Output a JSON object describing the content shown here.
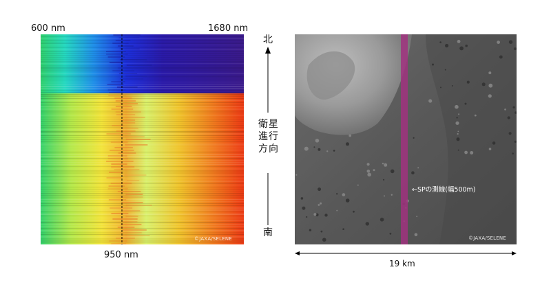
{
  "spectrum_panel": {
    "label_left": "600 nm",
    "label_right": "1680 nm",
    "label_marker": "950 nm",
    "credit": "©JAXA/SELENE"
  },
  "direction": {
    "north": "北",
    "south": "南",
    "label_line1": "衛星",
    "label_line2": "進行",
    "label_line3": "方向"
  },
  "lunar_panel": {
    "swath_label": "←SPの測線(幅500m)",
    "credit": "©JAXA/SELENE",
    "swath_color": "#a0337f"
  },
  "scale": {
    "label": "19 km"
  }
}
